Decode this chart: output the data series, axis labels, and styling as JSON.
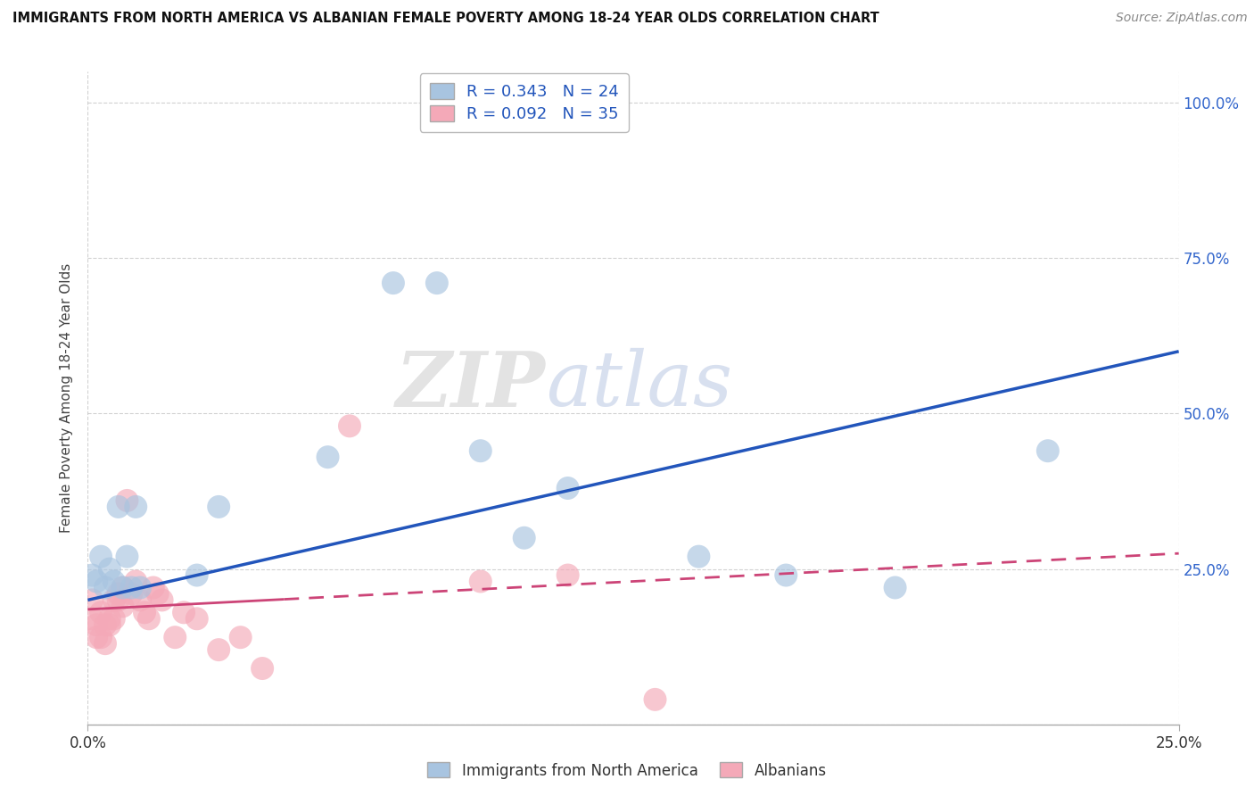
{
  "title": "IMMIGRANTS FROM NORTH AMERICA VS ALBANIAN FEMALE POVERTY AMONG 18-24 YEAR OLDS CORRELATION CHART",
  "source": "Source: ZipAtlas.com",
  "ylabel": "Female Poverty Among 18-24 Year Olds",
  "x_lim": [
    0.0,
    0.25
  ],
  "y_lim": [
    0.0,
    1.05
  ],
  "blue_R": 0.343,
  "blue_N": 24,
  "pink_R": 0.092,
  "pink_N": 35,
  "blue_color": "#A8C4E0",
  "pink_color": "#F4A9B8",
  "blue_line_color": "#2255BB",
  "pink_line_color": "#CC4477",
  "pink_line_dash": true,
  "watermark_text": "ZIP",
  "watermark_text2": "atlas",
  "blue_points_x": [
    0.001,
    0.002,
    0.003,
    0.004,
    0.005,
    0.006,
    0.007,
    0.008,
    0.009,
    0.01,
    0.011,
    0.012,
    0.025,
    0.03,
    0.055,
    0.07,
    0.08,
    0.09,
    0.1,
    0.11,
    0.14,
    0.16,
    0.185,
    0.22
  ],
  "blue_points_y": [
    0.24,
    0.23,
    0.27,
    0.22,
    0.25,
    0.23,
    0.35,
    0.22,
    0.27,
    0.22,
    0.35,
    0.22,
    0.24,
    0.35,
    0.43,
    0.71,
    0.71,
    0.44,
    0.3,
    0.38,
    0.27,
    0.24,
    0.22,
    0.44
  ],
  "pink_points_x": [
    0.001,
    0.001,
    0.002,
    0.002,
    0.003,
    0.003,
    0.004,
    0.004,
    0.005,
    0.005,
    0.006,
    0.006,
    0.007,
    0.007,
    0.008,
    0.008,
    0.009,
    0.01,
    0.011,
    0.012,
    0.013,
    0.014,
    0.015,
    0.016,
    0.017,
    0.02,
    0.022,
    0.025,
    0.03,
    0.035,
    0.04,
    0.06,
    0.09,
    0.11,
    0.13
  ],
  "pink_points_y": [
    0.2,
    0.17,
    0.16,
    0.14,
    0.18,
    0.14,
    0.13,
    0.16,
    0.16,
    0.17,
    0.2,
    0.17,
    0.2,
    0.21,
    0.19,
    0.22,
    0.36,
    0.21,
    0.23,
    0.2,
    0.18,
    0.17,
    0.22,
    0.21,
    0.2,
    0.14,
    0.18,
    0.17,
    0.12,
    0.14,
    0.09,
    0.48,
    0.23,
    0.24,
    0.04
  ],
  "blue_line_x0": 0.0,
  "blue_line_y0": 0.2,
  "blue_line_x1": 0.25,
  "blue_line_y1": 0.6,
  "pink_line_x0": 0.0,
  "pink_line_y0": 0.185,
  "pink_line_x1": 0.25,
  "pink_line_y1": 0.275
}
